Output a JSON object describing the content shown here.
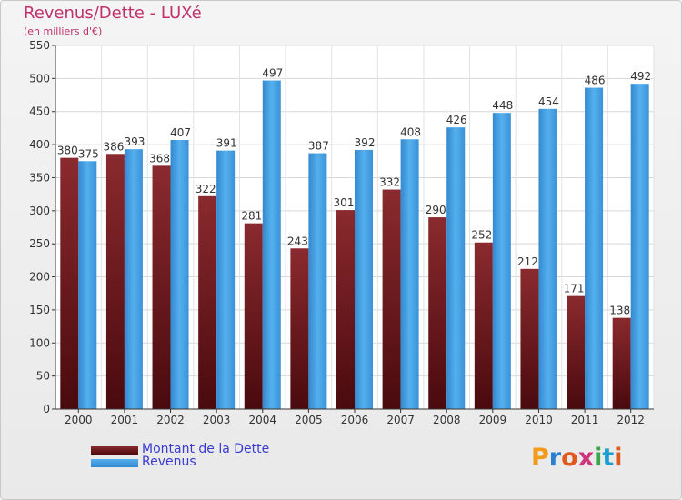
{
  "title": "Revenus/Dette - LUXé",
  "subtitle": "(en milliers d'€)",
  "colors": {
    "dette": "#7a1e22",
    "revenus": "#3f9be0",
    "title": "#c0306a",
    "legend_text": "#3a3ad0"
  },
  "legend": [
    {
      "label": "Montant de la Dette",
      "color_key": "dette"
    },
    {
      "label": "Revenus",
      "color_key": "revenus"
    }
  ],
  "logo": {
    "letters": [
      "P",
      "r",
      "o",
      "x",
      "i",
      "t",
      "i"
    ],
    "colors": [
      "#f29a1b",
      "#2b7fd0",
      "#e05a1f",
      "#d0347a",
      "#3aa64a",
      "#1b9fd0",
      "#e05a1f"
    ]
  },
  "chart_data": {
    "type": "bar",
    "categories": [
      "2000",
      "2001",
      "2002",
      "2003",
      "2004",
      "2005",
      "2006",
      "2007",
      "2008",
      "2009",
      "2010",
      "2011",
      "2012"
    ],
    "series": [
      {
        "name": "Montant de la Dette",
        "values": [
          380,
          386,
          368,
          322,
          281,
          243,
          301,
          332,
          290,
          252,
          212,
          171,
          138
        ]
      },
      {
        "name": "Revenus",
        "values": [
          375,
          393,
          407,
          391,
          497,
          387,
          392,
          408,
          426,
          448,
          454,
          486,
          492
        ]
      }
    ],
    "yticks": [
      0,
      50,
      100,
      150,
      200,
      250,
      300,
      350,
      400,
      450,
      500,
      550
    ],
    "ylim": [
      0,
      550
    ],
    "grid": true,
    "legend_position": "bottom-left"
  }
}
